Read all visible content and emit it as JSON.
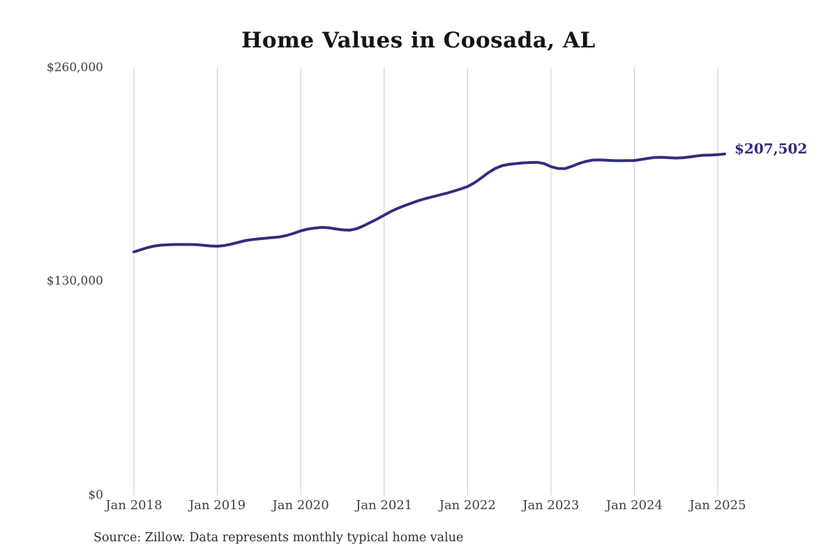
{
  "page": {
    "background_color": "#ffffff"
  },
  "chart_data": {
    "type": "line",
    "title": "Home Values in Coosada, AL",
    "source_note": "Source: Zillow. Data represents monthly typical home value",
    "xlabel": "",
    "ylabel": "",
    "x_start": "Jan 2018",
    "x_interval": "month",
    "x_tick_labels": [
      "Jan 2018",
      "Jan 2019",
      "Jan 2020",
      "Jan 2021",
      "Jan 2022",
      "Jan 2023",
      "Jan 2024",
      "Jan 2025"
    ],
    "y_tick_labels": [
      "$0",
      "$130,000",
      "$260,000"
    ],
    "y_tick_values": [
      0,
      130000,
      260000
    ],
    "ylim": [
      0,
      260000
    ],
    "grid": "vertical-only",
    "legend": "none",
    "line_color": "#312d7e",
    "end_label": "$207,502",
    "latest_value": 207502,
    "series": [
      {
        "name": "Monthly typical home value",
        "values": [
          148000,
          149300,
          150600,
          151600,
          152100,
          152300,
          152500,
          152500,
          152500,
          152350,
          152000,
          151600,
          151400,
          151800,
          152700,
          153750,
          154800,
          155450,
          155900,
          156300,
          156700,
          157100,
          158000,
          159250,
          160750,
          161800,
          162450,
          162870,
          162650,
          162000,
          161400,
          161170,
          162000,
          163700,
          165850,
          167950,
          170300,
          172600,
          174500,
          176200,
          177700,
          179200,
          180450,
          181500,
          182600,
          183650,
          184900,
          186200,
          187700,
          190000,
          193000,
          196150,
          198700,
          200400,
          201250,
          201700,
          202100,
          202300,
          202450,
          201700,
          199800,
          198700,
          198600,
          200000,
          201700,
          202950,
          203800,
          203900,
          203700,
          203450,
          203400,
          203450,
          203550,
          204200,
          204850,
          205400,
          205500,
          205250,
          205050,
          205250,
          205700,
          206350,
          206750,
          206800,
          207100,
          207502
        ]
      }
    ]
  }
}
